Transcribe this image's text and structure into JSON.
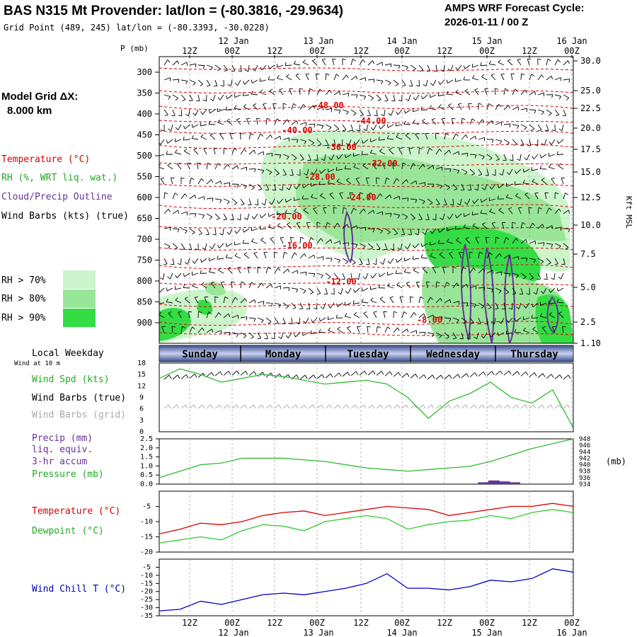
{
  "header": {
    "title": "BAS N315 Mt Provender:  lat/lon = (-80.3816, -29.9634)",
    "grid_point": "Grid Point (489, 245) lat/lon = (-80.3393, -30.0228)",
    "cycle_label": "AMPS WRF Forecast Cycle:",
    "cycle_value": "2026-01-11 / 00  Z",
    "pressure_axis_unit": "P (mb)"
  },
  "left_panel": {
    "model_grid_label": "Model Grid ΔX:",
    "model_grid_value": "8.000 km",
    "temperature_label": "Temperature (°C)",
    "rh_label": "RH (%, WRT liq. wat.)",
    "cloud_label": "Cloud/Precip Outline",
    "wind_label": "Wind Barbs (kts) (true)",
    "rh_legend": [
      {
        "label": "RH > 70%",
        "color": "#ccf5cc"
      },
      {
        "label": "RH > 80%",
        "color": "#99e699"
      },
      {
        "label": "RH > 90%",
        "color": "#33dd44"
      }
    ],
    "local_weekday": "Local Weekday",
    "wind_at_10m": "Wind at 10 m",
    "wind_spd_label": "Wind Spd (kts)",
    "wind_barbs_true": "Wind Barbs (true)",
    "wind_barbs_grid": "Wind Barbs (grid)",
    "precip_label_1": "Precip (mm)",
    "precip_label_2": "liq. equiv.",
    "precip_label_3": "3-hr accum",
    "pressure_label": "Pressure (mb)",
    "temp_series_label": "Temperature (°C)",
    "dewpoint_label": "Dewpoint (°C)",
    "windchill_label": "Wind Chill T (°C)"
  },
  "colors": {
    "temperature": "#dd0000",
    "rh": "#33cc33",
    "cloud": "#663399",
    "wind_spd": "#33bb33",
    "windchill": "#0000cc",
    "grid_barbs": "#aaaaaa",
    "daybar": "#5a6fa8"
  },
  "time_axis": {
    "top_tick_labels": [
      "12Z",
      "00Z",
      "12Z",
      "00Z",
      "12Z",
      "00Z",
      "12Z",
      "00Z",
      "12Z",
      "00Z"
    ],
    "date_labels": [
      "12 Jan",
      "13 Jan",
      "14 Jan",
      "15 Jan",
      "16 Jan"
    ],
    "weekdays": [
      "Sunday",
      "Monday",
      "Tuesday",
      "Wednesday",
      "Thursday"
    ]
  },
  "chart_data": [
    {
      "type": "heatmap",
      "name": "cross-section",
      "y_axis_left_ticks": [
        "300",
        "350",
        "400",
        "450",
        "500",
        "550",
        "600",
        "650",
        "700",
        "750",
        "800",
        "850",
        "900"
      ],
      "y_axis_right_label": "Kft MSL",
      "y_axis_right_ticks": [
        "30.0",
        "25.0",
        "22.5",
        "20.0",
        "17.5",
        "15.0",
        "12.5",
        "10.0",
        "7.5",
        "5.0",
        "2.5",
        "1.10"
      ],
      "temperature_contours": [
        {
          "value": "-48.00",
          "p": 410
        },
        {
          "value": "-44.00",
          "p": 430
        },
        {
          "value": "-40.00",
          "p": 460
        },
        {
          "value": "-36.00",
          "p": 480
        },
        {
          "value": "-32.00",
          "p": 510
        },
        {
          "value": "-28.00",
          "p": 540
        },
        {
          "value": "-24.00",
          "p": 580
        },
        {
          "value": "-20.00",
          "p": 630
        },
        {
          "value": "-16.00",
          "p": 690
        },
        {
          "value": "-12.00",
          "p": 760
        },
        {
          "value": "-8.00",
          "p": 860
        }
      ]
    },
    {
      "type": "line",
      "name": "wind-speed",
      "y_ticks": [
        "18",
        "15",
        "12",
        "9",
        "6",
        "3",
        "0"
      ],
      "ylim": [
        0,
        18
      ],
      "x_hours": [
        0,
        6,
        12,
        18,
        24,
        30,
        36,
        42,
        48,
        54,
        60,
        66,
        72,
        78,
        84,
        90,
        96,
        102,
        108,
        114,
        120
      ],
      "values": [
        14,
        16.5,
        15,
        13,
        14,
        15,
        14.5,
        13.5,
        12.5,
        13,
        13.5,
        12.5,
        9,
        3.5,
        8,
        10,
        13,
        9,
        7.5,
        11,
        1
      ]
    },
    {
      "type": "line",
      "name": "pressure-precip",
      "y_ticks_left": [
        "2.5",
        "2.0",
        "1.5",
        "1.0",
        "0.5",
        "0.0"
      ],
      "y_ticks_right": [
        "948",
        "946",
        "944",
        "942",
        "940",
        "938",
        "936",
        "934"
      ],
      "right_unit": "(mb)",
      "ylim_left": [
        0,
        2.5
      ],
      "ylim_right": [
        934,
        948
      ],
      "x_hours": [
        0,
        6,
        12,
        18,
        24,
        30,
        36,
        42,
        48,
        54,
        60,
        66,
        72,
        78,
        84,
        90,
        96,
        102,
        108,
        114,
        120
      ],
      "pressure": [
        936,
        938,
        940,
        940.5,
        942,
        942,
        942,
        941.5,
        941,
        940,
        939,
        938.5,
        938,
        938.5,
        939,
        939.5,
        941,
        943,
        945,
        946.5,
        948
      ],
      "precip_bars": [
        {
          "hour": 94,
          "value": 0.1
        },
        {
          "hour": 97,
          "value": 0.2
        },
        {
          "hour": 100,
          "value": 0.15
        },
        {
          "hour": 103,
          "value": 0.1
        }
      ]
    },
    {
      "type": "line",
      "name": "temperature-dewpoint",
      "y_ticks": [
        "-5",
        "-10",
        "-15",
        "-20"
      ],
      "ylim": [
        -20,
        0
      ],
      "x_hours": [
        0,
        6,
        12,
        18,
        24,
        30,
        36,
        42,
        48,
        54,
        60,
        66,
        72,
        78,
        84,
        90,
        96,
        102,
        108,
        114,
        120
      ],
      "temperature": [
        -14,
        -12.5,
        -10.5,
        -11,
        -10,
        -8,
        -7,
        -6.5,
        -8,
        -7,
        -6,
        -5,
        -5.5,
        -6,
        -8,
        -7,
        -6,
        -5,
        -5,
        -4,
        -5
      ],
      "dewpoint": [
        -17,
        -16,
        -15,
        -16,
        -13,
        -11,
        -11.5,
        -13,
        -10,
        -9,
        -8,
        -9,
        -12.5,
        -11,
        -10,
        -9.5,
        -8,
        -9,
        -7,
        -6,
        -7
      ]
    },
    {
      "type": "line",
      "name": "wind-chill",
      "y_ticks": [
        "-5",
        "-10",
        "-15",
        "-20",
        "-25",
        "-30",
        "-35"
      ],
      "ylim": [
        -35,
        0
      ],
      "x_hours": [
        0,
        6,
        12,
        18,
        24,
        30,
        36,
        42,
        48,
        54,
        60,
        66,
        72,
        78,
        84,
        90,
        96,
        102,
        108,
        114,
        120
      ],
      "values": [
        -32,
        -31,
        -26,
        -28,
        -25,
        -22,
        -21,
        -22,
        -20,
        -18,
        -15,
        -9,
        -18,
        -18,
        -19,
        -17,
        -13,
        -14,
        -12,
        -6,
        -8
      ]
    }
  ]
}
